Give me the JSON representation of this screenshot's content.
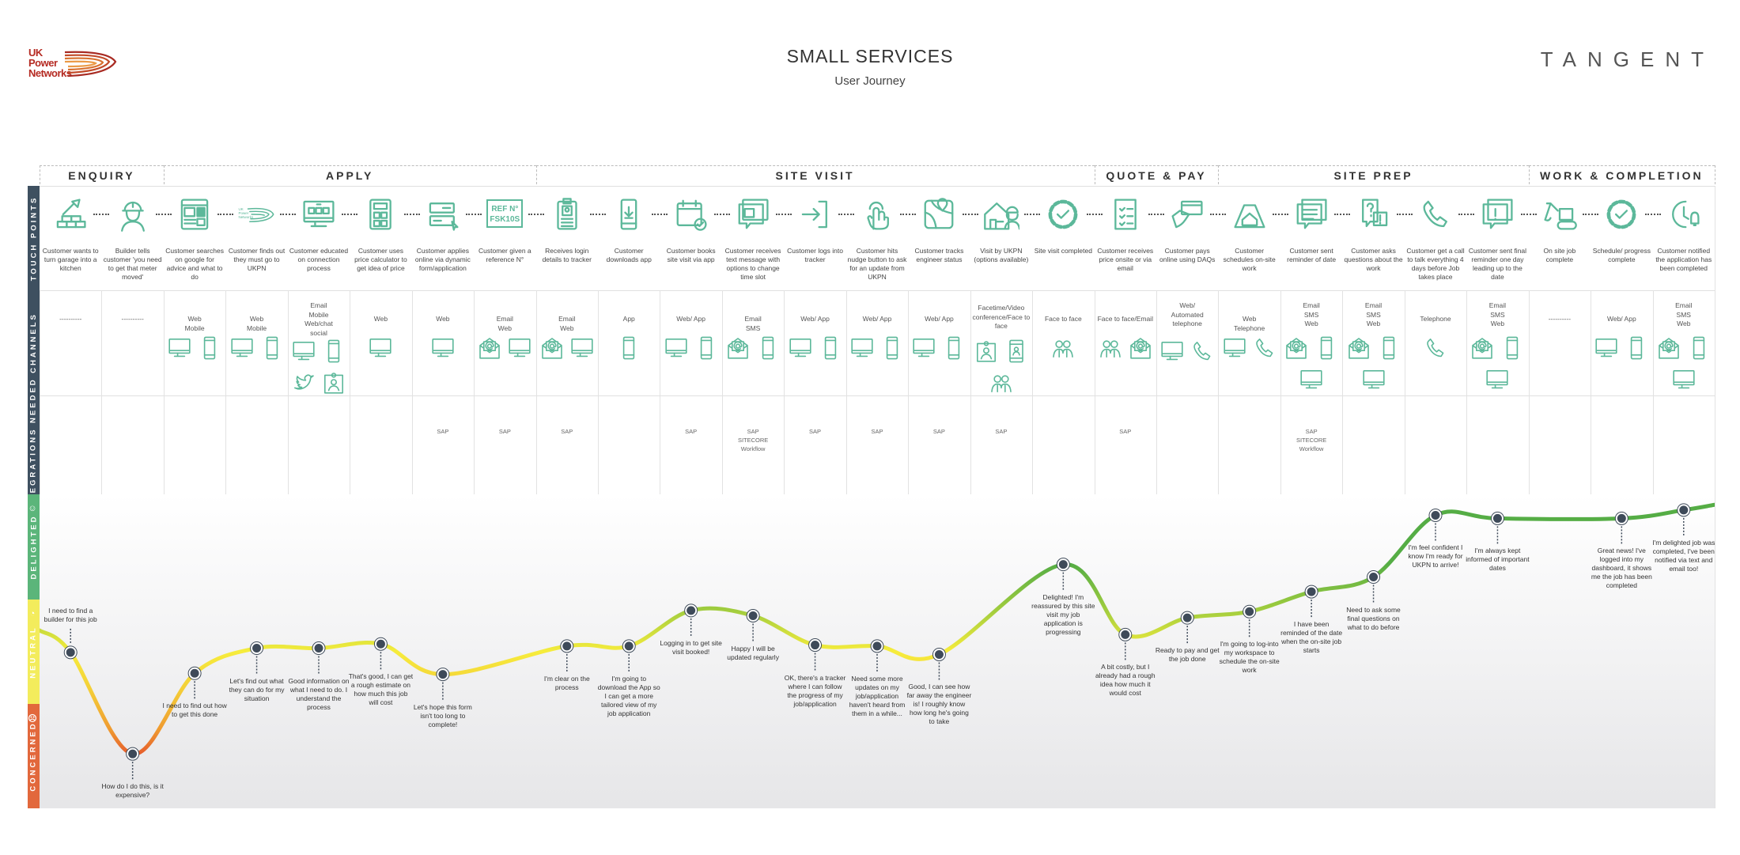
{
  "header": {
    "title": "SMALL SERVICES",
    "subtitle": "User Journey",
    "client_logo": "UK Power Networks",
    "agency_logo": "TANGENT"
  },
  "row_labels": {
    "touch_points": "TOUCH POINTS",
    "channels": "CHANNELS",
    "integrations": "INTEGRATIONS NEEDED",
    "delighted": "DELIGHTED",
    "neutral": "NEUTRAL",
    "concerned": "CONCERNED"
  },
  "colors": {
    "icon": "#5cb89a",
    "row_label": "#3e5060",
    "delighted": "#5bb57a",
    "neutral": "#f3ec5c",
    "concerned": "#e2683c",
    "point": "#3e4a59"
  },
  "phases": [
    {
      "label": "ENQUIRY",
      "first_step": 0,
      "last_step": 1
    },
    {
      "label": "APPLY",
      "first_step": 2,
      "last_step": 7
    },
    {
      "label": "SITE VISIT",
      "first_step": 8,
      "last_step": 16
    },
    {
      "label": "QUOTE & PAY",
      "first_step": 17,
      "last_step": 18
    },
    {
      "label": "SITE PREP",
      "first_step": 19,
      "last_step": 23
    },
    {
      "label": "WORK & COMPLETION",
      "first_step": 24,
      "last_step": 26
    }
  ],
  "emotion_scale": [
    "CONCERNED",
    "NEUTRAL",
    "DELIGHTED"
  ],
  "emotion_curve_ends": {
    "start": 1.7,
    "end": 2.9
  },
  "steps": [
    {
      "touchpoint": "Customer wants to turn garage into a kitchen",
      "icon": "brick-trowel",
      "channel": "----------",
      "channel_icons": [],
      "integration": "",
      "emotion": 1.49,
      "quote": "I need to find a builder for this job"
    },
    {
      "touchpoint": "Builder tells customer 'you need to get that meter moved'",
      "icon": "builder",
      "channel": "----------",
      "channel_icons": [],
      "integration": "",
      "emotion": 0.52,
      "quote": "How do I do this, is it expensive?"
    },
    {
      "touchpoint": "Customer searches on google for advice and what to do",
      "icon": "browser",
      "channel": "Web\nMobile",
      "channel_icons": [
        "desktop",
        "mobile"
      ],
      "integration": "",
      "emotion": 1.29,
      "quote": "I need to find out how to get this done"
    },
    {
      "touchpoint": "Customer finds out they must go to UKPN",
      "icon": "ukpn-logo",
      "icon_text": "UK Power Networks",
      "channel": "Web\nMobile",
      "channel_icons": [
        "desktop",
        "mobile"
      ],
      "integration": "",
      "emotion": 1.53,
      "quote": "Let's find out what they can do for my situation"
    },
    {
      "touchpoint": "Customer educated on connection process",
      "icon": "monitor-web",
      "channel": "Email\nMobile\nWeb/chat\nsocial",
      "channel_icons": [
        "desktop",
        "mobile",
        "twitter",
        "contact-card"
      ],
      "integration": "",
      "emotion": 1.53,
      "quote": "Good information on what I need to do. I understand the process"
    },
    {
      "touchpoint": "Customer uses price calculator to get idea of price",
      "icon": "calculator",
      "channel": "Web",
      "channel_icons": [
        "desktop"
      ],
      "integration": "",
      "emotion": 1.57,
      "quote": "That's good, I can get a rough estimate on how much this job will cost"
    },
    {
      "touchpoint": "Customer applies online via dynamic form/application",
      "icon": "form",
      "channel": "Web",
      "channel_icons": [
        "desktop"
      ],
      "integration": "SAP",
      "emotion": 1.28,
      "quote": "Let's hope this form isn't too long to complete!"
    },
    {
      "touchpoint": "Customer given a reference N°",
      "icon": "reference-card",
      "icon_text": "REF N°\nFSK10S",
      "channel": "Email\nWeb",
      "channel_icons": [
        "email",
        "desktop"
      ],
      "integration": "SAP",
      "emotion": null,
      "quote": ""
    },
    {
      "touchpoint": "Receives login details to tracker",
      "icon": "id-badge",
      "channel": "Email\nWeb",
      "channel_icons": [
        "email",
        "desktop"
      ],
      "integration": "SAP",
      "emotion": 1.55,
      "quote": "I'm clear on the process"
    },
    {
      "touchpoint": "Customer downloads app",
      "icon": "phone-download",
      "channel": "App",
      "channel_icons": [
        "mobile"
      ],
      "integration": "",
      "emotion": 1.55,
      "quote": "I'm going to download the App so I can get a more tailored view of my job application"
    },
    {
      "touchpoint": "Customer books site visit via app",
      "icon": "calendar-check",
      "channel": "Web/ App",
      "channel_icons": [
        "desktop",
        "mobile"
      ],
      "integration": "SAP",
      "emotion": 1.89,
      "quote": "Logging in to get site visit booked!"
    },
    {
      "touchpoint": "Customer receives text message with options to change time slot",
      "icon": "message-calendar",
      "channel": "Email\nSMS",
      "channel_icons": [
        "email",
        "mobile"
      ],
      "integration": "SAP\nSITECORE\nWorkflow",
      "emotion": 1.84,
      "quote": "Happy I will be updated regularly"
    },
    {
      "touchpoint": "Customer logs into tracker",
      "icon": "login-arrow",
      "channel": "Web/ App",
      "channel_icons": [
        "desktop",
        "mobile"
      ],
      "integration": "SAP",
      "emotion": 1.56,
      "quote": "OK, there's a tracker where I can follow the progress of my job/application"
    },
    {
      "touchpoint": "Customer hits nudge button to ask for an update from UKPN",
      "icon": "hand-tap",
      "channel": "Web/ App",
      "channel_icons": [
        "desktop",
        "mobile"
      ],
      "integration": "SAP",
      "emotion": 1.55,
      "quote": "Need some more updates on my job/application haven't heard from them in a while..."
    },
    {
      "touchpoint": "Customer tracks engineer status",
      "icon": "map-pin",
      "channel": "Web/ App",
      "channel_icons": [
        "desktop",
        "mobile"
      ],
      "integration": "SAP",
      "emotion": 1.47,
      "quote": "Good, I can see how far away the engineer is! I roughly know how long he's going to take"
    },
    {
      "touchpoint": "Visit by UKPN (options available)",
      "icon": "house-engineer",
      "channel": "Facetime/Video conference/Face to face",
      "channel_icons": [
        "contact-card",
        "video-phone",
        "people"
      ],
      "integration": "SAP",
      "emotion": null,
      "quote": ""
    },
    {
      "touchpoint": "Site visit completed",
      "icon": "progress-circle",
      "channel": "Face to face",
      "channel_icons": [
        "people"
      ],
      "integration": "",
      "emotion": 2.33,
      "quote": "Delighted! I'm reassured by this site visit my job application is progressing"
    },
    {
      "touchpoint": "Customer receives price onsite or via email",
      "icon": "document-checklist",
      "channel": "Face to face/Email",
      "channel_icons": [
        "people",
        "email"
      ],
      "integration": "SAP",
      "emotion": 1.66,
      "quote": "A bit costly, but I already had a rough idea how much it would cost"
    },
    {
      "touchpoint": "Customer pays online using DAQs",
      "icon": "card-payment",
      "channel": "Web/\nAutomated\ntelephone",
      "channel_icons": [
        "desktop",
        "telephone"
      ],
      "integration": "",
      "emotion": 1.82,
      "quote": "Ready to pay and get the job done"
    },
    {
      "touchpoint": "Customer schedules on-site work",
      "icon": "map-house",
      "channel": "Web\nTelephone",
      "channel_icons": [
        "desktop",
        "telephone"
      ],
      "integration": "",
      "emotion": 1.88,
      "quote": "I'm going to log-into my workspace to schedule the on-site work"
    },
    {
      "touchpoint": "Customer sent reminder of date",
      "icon": "chat-lines",
      "channel": "Email\nSMS\nWeb",
      "channel_icons": [
        "email",
        "mobile",
        "desktop"
      ],
      "integration": "SAP\nSITECORE\nWorkflow",
      "emotion": 2.07,
      "quote": "I have been reminded of the date when the on-site job starts"
    },
    {
      "touchpoint": "Customer asks questions about the work",
      "icon": "chat-question",
      "channel": "Email\nSMS\nWeb",
      "channel_icons": [
        "email",
        "mobile",
        "desktop"
      ],
      "integration": "",
      "emotion": 2.21,
      "quote": "Need to ask some final questions on what to do before"
    },
    {
      "touchpoint": "Customer get a call to talk everything 4 days before Job takes place",
      "icon": "telephone",
      "channel": "Telephone",
      "channel_icons": [
        "telephone"
      ],
      "integration": "",
      "emotion": 2.8,
      "quote": "I'm feel confident I know I'm ready for UKPN to arrive!"
    },
    {
      "touchpoint": "Customer sent final reminder one day leading up to the date",
      "icon": "chat-alert",
      "channel": "Email\nSMS\nWeb",
      "channel_icons": [
        "email",
        "mobile",
        "desktop"
      ],
      "integration": "",
      "emotion": 2.77,
      "quote": "I'm always kept informed of important dates"
    },
    {
      "touchpoint": "On site job complete",
      "icon": "excavator",
      "channel": "----------",
      "channel_icons": [],
      "integration": "",
      "emotion": null,
      "quote": ""
    },
    {
      "touchpoint": "Schedule/ progress complete",
      "icon": "progress-check",
      "channel": "Web/ App",
      "channel_icons": [
        "desktop",
        "mobile"
      ],
      "integration": "",
      "emotion": 2.77,
      "quote": "Great news! I've logged into my dashboard, it shows me the job has been completed"
    },
    {
      "touchpoint": "Customer notified the application has been completed",
      "icon": "clock-bell",
      "channel": "Email\nSMS\nWeb",
      "channel_icons": [
        "email",
        "mobile",
        "desktop"
      ],
      "integration": "",
      "emotion": 2.85,
      "quote": "I'm delighted job was completed, I've been notified via text and email too!"
    }
  ]
}
